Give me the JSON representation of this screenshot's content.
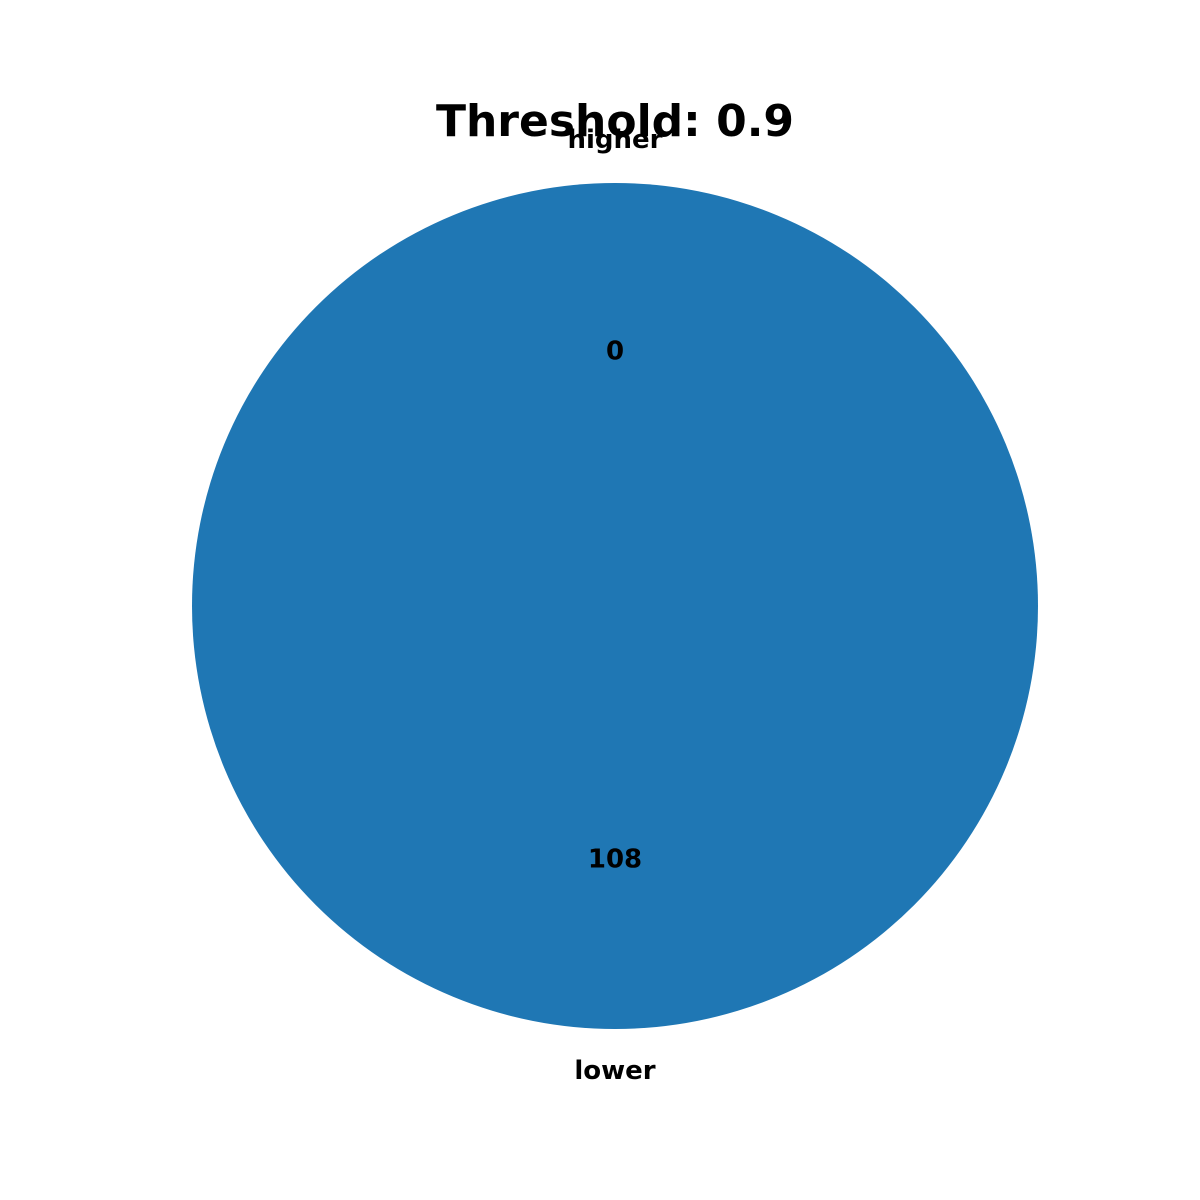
{
  "chart_data": {
    "type": "pie",
    "title": "Threshold: 0.9",
    "slices": [
      {
        "label": "lower",
        "value": 108,
        "color": "#1f77b4"
      },
      {
        "label": "higher",
        "value": 0,
        "color": "#ff7f0e"
      }
    ],
    "start_angle_deg": 90,
    "direction": "counterclockwise",
    "legend": "none"
  }
}
